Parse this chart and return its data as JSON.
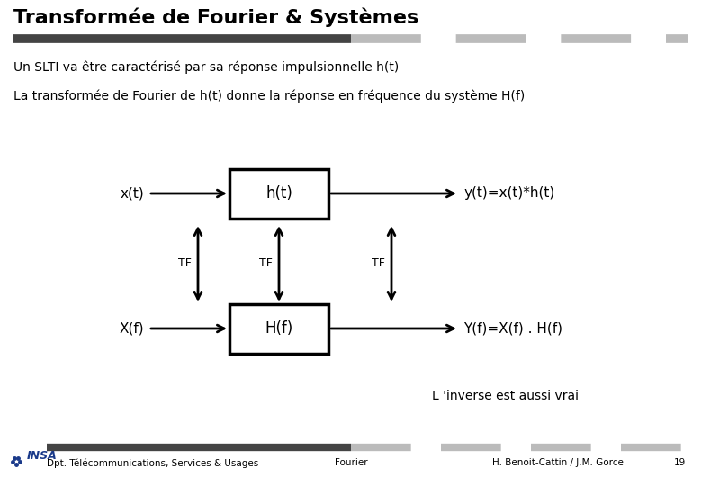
{
  "title": "Transformée de Fourier & Systèmes",
  "title_fontsize": 16,
  "bg_color": "#ffffff",
  "text_color": "#000000",
  "line1": "Un SLTI va être caractérisé par sa réponse impulsionnelle h(t)",
  "line2": "La transformée de Fourier de h(t) donne la réponse en fréquence du système H(f)",
  "box1_label": "h(t)",
  "box2_label": "H(f)",
  "input_top": "x(t)",
  "output_top": "y(t)=x(t)*h(t)",
  "input_bottom": "X(f)",
  "output_bottom": "Y(f)=X(f) . H(f)",
  "tf_label": "TF",
  "inverse_text": "L 'inverse est aussi vrai",
  "footer_left": "Dpt. Télécommunications, Services & Usages",
  "footer_center": "Fourier",
  "footer_right": "H. Benoit-Cattin / J.M. Gorce",
  "footer_page": "19",
  "bar_dark": "#444444",
  "bar_light": "#bbbbbb",
  "insa_blue": "#1a3a8a",
  "body_fontsize": 10,
  "diagram_fontsize": 11,
  "tf_fontsize": 9,
  "footer_fontsize": 7.5
}
